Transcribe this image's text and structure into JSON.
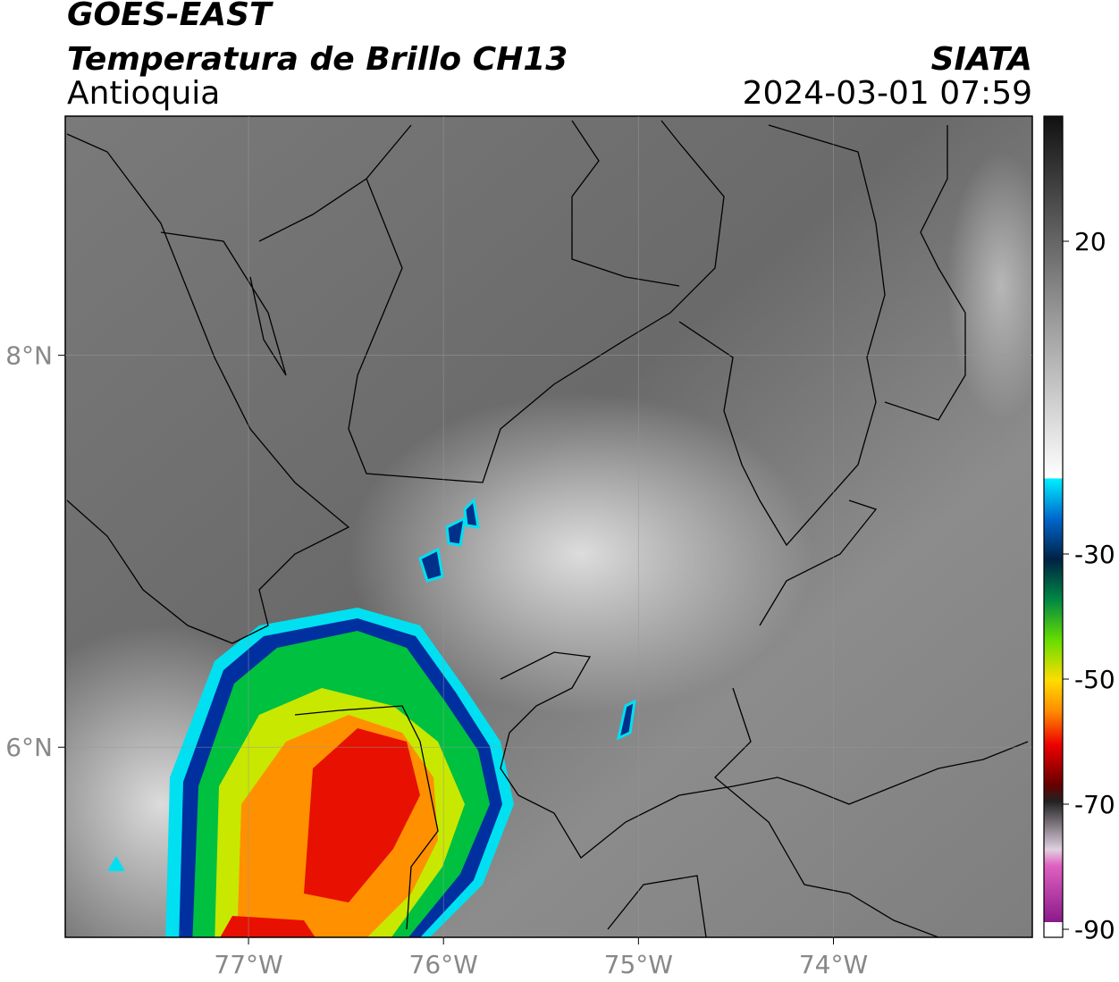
{
  "header": {
    "title": "GOES-EAST",
    "subtitle": "Temperatura de Brillo CH13",
    "region": "Antioquia",
    "source": "SIATA",
    "datetime": "2024-03-01 07:59"
  },
  "map": {
    "lon_range": [
      -77.94,
      -72.98
    ],
    "lat_range": [
      5.03,
      9.22
    ],
    "lat_ticks": [
      {
        "value": 8,
        "label": "8°N"
      },
      {
        "value": 6,
        "label": "6°N"
      }
    ],
    "lon_ticks": [
      {
        "value": -77,
        "label": "77°W"
      },
      {
        "value": -76,
        "label": "76°W"
      },
      {
        "value": -75,
        "label": "75°W"
      },
      {
        "value": -74,
        "label": "74°W"
      }
    ]
  },
  "colorbar": {
    "range": [
      -92,
      40
    ],
    "ticks": [
      20,
      -30,
      -50,
      -70,
      -90
    ]
  }
}
